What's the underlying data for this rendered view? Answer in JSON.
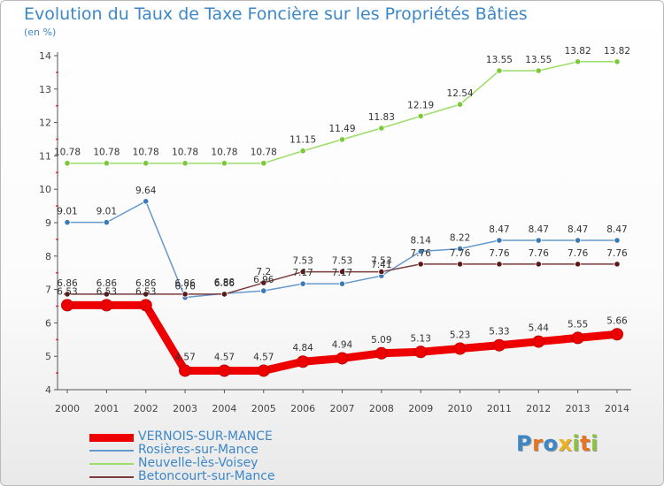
{
  "title": "Evolution du Taux de Taxe Foncière sur les Propriétés Bâties",
  "subtitle": "(en %)",
  "logo": {
    "text": "Proxiti",
    "letter_colors": [
      "#3d87c7",
      "#e8731e",
      "#3d87c7",
      "#f0b21b",
      "#8cc33c",
      "#e8731e",
      "#8cc33c"
    ]
  },
  "chart_data": {
    "type": "line",
    "title": "Evolution du Taux de Taxe Foncière sur les Propriétés Bâties",
    "ylabel": "(en %)",
    "xlabel": "",
    "x": [
      2000,
      2001,
      2002,
      2003,
      2004,
      2005,
      2006,
      2007,
      2008,
      2009,
      2010,
      2011,
      2012,
      2013,
      2014
    ],
    "ylim": [
      4,
      14
    ],
    "yticks": [
      4,
      5,
      6,
      7,
      8,
      9,
      10,
      11,
      12,
      13,
      14
    ],
    "grid": false,
    "legend_position": "bottom-left",
    "series": [
      {
        "name": "VERNOIS-SUR-MANCE",
        "color": "#ee0000",
        "marker_color": "#ee0000",
        "emphasis": "thick",
        "values": [
          6.53,
          6.53,
          6.53,
          4.57,
          4.57,
          4.57,
          4.84,
          4.94,
          5.09,
          5.13,
          5.23,
          5.33,
          5.44,
          5.55,
          5.66
        ],
        "labels": [
          "6.53",
          "6.53",
          "6.53",
          "4.57",
          "4.57",
          "4.57",
          "4.84",
          "4.94",
          "5.09",
          "5.13",
          "5.23",
          "5.33",
          "5.44",
          "5.55",
          "5.66"
        ]
      },
      {
        "name": "Rosières-sur-Mance",
        "color": "#6699cc",
        "marker_color": "#3d79b5",
        "values": [
          9.01,
          9.01,
          9.64,
          6.76,
          6.88,
          6.96,
          7.17,
          7.17,
          7.41,
          8.14,
          8.22,
          8.47,
          8.47,
          8.47,
          8.47
        ],
        "labels": [
          "9.01",
          "9.01",
          "9.64",
          "6.76",
          "6.88",
          "6.96",
          "7.17",
          "7.17",
          "7.41",
          "8.14",
          "8.22",
          "8.47",
          "8.47",
          "8.47",
          "8.47"
        ]
      },
      {
        "name": "Neuvelle-lès-Voisey",
        "color": "#99dd66",
        "marker_color": "#7bc93a",
        "values": [
          10.78,
          10.78,
          10.78,
          10.78,
          10.78,
          10.78,
          11.15,
          11.49,
          11.83,
          12.19,
          12.54,
          13.55,
          13.55,
          13.82,
          13.82
        ],
        "labels": [
          "10.78",
          "10.78",
          "10.78",
          "10.78",
          "10.78",
          "10.78",
          "11.15",
          "11.49",
          "11.83",
          "12.19",
          "12.54",
          "13.55",
          "13.55",
          "13.82",
          "13.82"
        ]
      },
      {
        "name": "Betoncourt-sur-Mance",
        "color": "#7a3a3a",
        "marker_color": "#5a1818",
        "values": [
          6.86,
          6.86,
          6.86,
          6.86,
          6.86,
          7.2,
          7.53,
          7.53,
          7.53,
          7.76,
          7.76,
          7.76,
          7.76,
          7.76,
          7.76
        ],
        "labels": [
          "6.86",
          "6.86",
          "6.86",
          "6.86",
          "6.86",
          "7.2",
          "7.53",
          "7.53",
          "7.53",
          "7.76",
          "7.76",
          "7.76",
          "7.76",
          "7.76",
          "7.76"
        ]
      }
    ]
  }
}
